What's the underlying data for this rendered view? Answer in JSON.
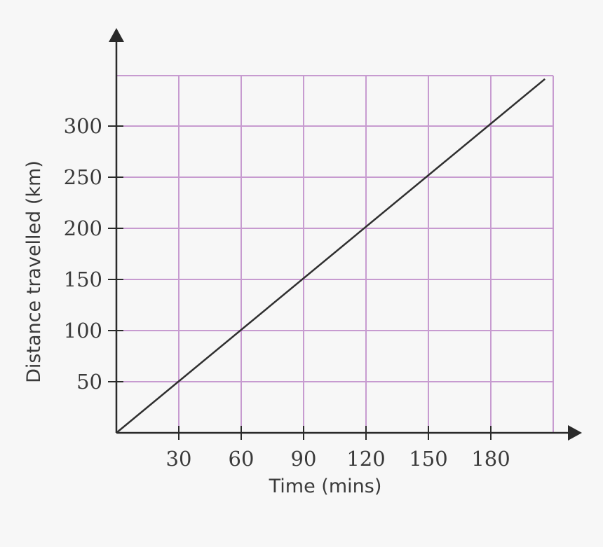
{
  "chart_data": {
    "type": "line",
    "title": "",
    "xlabel": "Time (mins)",
    "ylabel": "Distance travelled (km)",
    "x_ticks": [
      30,
      60,
      90,
      120,
      150,
      180
    ],
    "y_ticks": [
      50,
      100,
      150,
      200,
      250,
      300
    ],
    "xlim": [
      0,
      210
    ],
    "ylim": [
      0,
      350
    ],
    "grid": true,
    "grid_color": "#c79bd0",
    "line_color": "#2f2f2f",
    "axis_color": "#2a2a2a",
    "series": [
      {
        "x": [
          0,
          206
        ],
        "y": [
          0,
          346
        ]
      }
    ]
  }
}
